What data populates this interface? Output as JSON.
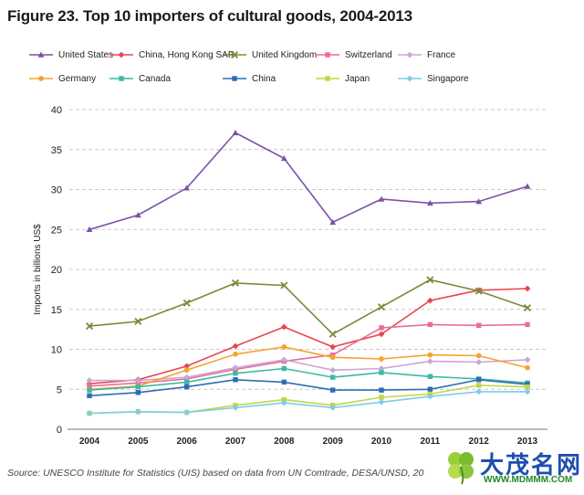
{
  "figure": {
    "title": "Figure 23. Top 10 importers of cultural goods, 2004-2013",
    "source": "Source: UNESCO Institute for Statistics (UIS) based on data from UN Comtrade, DESA/UNSD, 20"
  },
  "watermark": {
    "text": "大茂名网",
    "url": "WWW.MDMMM.COM"
  },
  "chart_data": {
    "type": "line",
    "title": "Figure 23. Top 10 importers of cultural goods, 2004-2013",
    "xlabel": "",
    "ylabel": "Imports in billions US$",
    "x": [
      "2004",
      "2005",
      "2006",
      "2007",
      "2008",
      "2009",
      "2010",
      "2011",
      "2012",
      "2013"
    ],
    "ylim": [
      0,
      40
    ],
    "yticks": [
      0,
      5,
      10,
      15,
      20,
      25,
      30,
      35,
      40
    ],
    "grid": "horizontal dashed",
    "legend_position": "top",
    "series": [
      {
        "name": "United States",
        "color": "#7b52a6",
        "marker": "triangle",
        "values": [
          25.0,
          26.8,
          30.2,
          37.1,
          33.9,
          25.9,
          28.8,
          28.3,
          28.5,
          30.4
        ]
      },
      {
        "name": "China, Hong Kong SAR",
        "color": "#e8474f",
        "marker": "diamond",
        "values": [
          5.7,
          6.2,
          7.9,
          10.4,
          12.8,
          10.3,
          11.9,
          16.1,
          17.4,
          17.6
        ]
      },
      {
        "name": "United Kingdom",
        "color": "#7b8a36",
        "marker": "x",
        "values": [
          12.9,
          13.5,
          15.8,
          18.3,
          18.0,
          11.9,
          15.3,
          18.7,
          17.3,
          15.2
        ]
      },
      {
        "name": "Switzerland",
        "color": "#ec6d96",
        "marker": "square",
        "values": [
          5.4,
          5.8,
          6.3,
          7.5,
          8.5,
          9.3,
          12.7,
          13.1,
          13.0,
          13.1
        ]
      },
      {
        "name": "France",
        "color": "#c9a6d8",
        "marker": "diamond",
        "values": [
          6.1,
          6.1,
          6.5,
          7.7,
          8.7,
          7.4,
          7.6,
          8.5,
          8.4,
          8.7
        ]
      },
      {
        "name": "Germany",
        "color": "#f5a32e",
        "marker": "circle",
        "values": [
          5.0,
          5.4,
          7.4,
          9.4,
          10.3,
          9.0,
          8.8,
          9.3,
          9.2,
          7.7
        ]
      },
      {
        "name": "Canada",
        "color": "#3fb8a4",
        "marker": "square",
        "values": [
          4.9,
          5.3,
          5.9,
          7.0,
          7.6,
          6.5,
          7.1,
          6.6,
          6.3,
          5.8
        ]
      },
      {
        "name": "China",
        "color": "#2e6db4",
        "marker": "square",
        "values": [
          4.2,
          4.6,
          5.3,
          6.2,
          5.9,
          4.9,
          4.9,
          5.0,
          6.2,
          5.6
        ]
      },
      {
        "name": "Japan",
        "color": "#c3d545",
        "marker": "square",
        "values": [
          2.0,
          2.2,
          2.1,
          3.0,
          3.7,
          3.0,
          4.0,
          4.4,
          5.5,
          5.3
        ]
      },
      {
        "name": "Singapore",
        "color": "#7fcbea",
        "marker": "diamond",
        "values": [
          2.0,
          2.2,
          2.1,
          2.7,
          3.3,
          2.7,
          3.4,
          4.1,
          4.7,
          4.7
        ]
      }
    ]
  }
}
